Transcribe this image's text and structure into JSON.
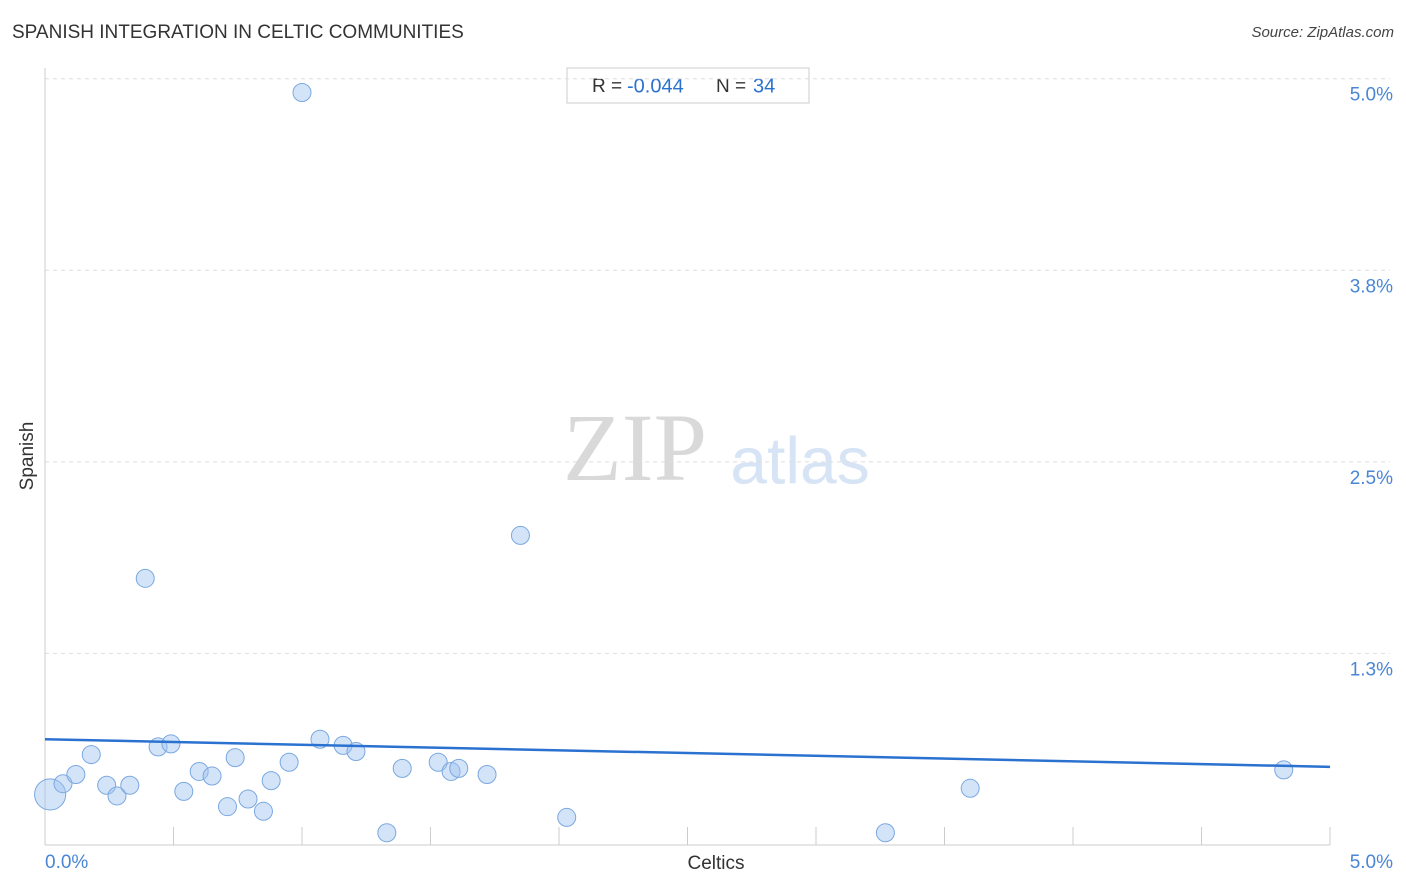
{
  "chart_data": {
    "type": "scatter",
    "title": "SPANISH INTEGRATION IN CELTIC COMMUNITIES",
    "source": "Source: ZipAtlas.com",
    "watermark": [
      "ZIP",
      "atlas"
    ],
    "x_label": "Celtics",
    "y_label": "Spanish",
    "stats": {
      "r_label": "R =",
      "r": -0.044,
      "n_label": "N =",
      "n": 34
    },
    "xlim": [
      0,
      5
    ],
    "ylim": [
      0,
      5.07
    ],
    "xticks": [
      {
        "value": 0,
        "label": "0.0%"
      },
      {
        "value": 5,
        "label": "5.0%"
      }
    ],
    "minor_xticks": [
      0.5,
      1,
      1.5,
      2,
      2.5,
      3,
      3.5,
      4,
      4.5,
      5
    ],
    "yticks": [
      {
        "value": 1.25,
        "label": "1.3%"
      },
      {
        "value": 2.5,
        "label": "2.5%"
      },
      {
        "value": 3.75,
        "label": "3.8%"
      },
      {
        "value": 5,
        "label": "5.0%"
      }
    ],
    "grid": true,
    "color": "#7aa8e0",
    "trend_color": "#2b72d0",
    "series": [
      {
        "name": "Spanish",
        "x": [
          0.02,
          0.07,
          0.12,
          0.18,
          0.24,
          0.28,
          0.33,
          0.39,
          0.44,
          0.49,
          0.54,
          0.6,
          0.65,
          0.71,
          0.74,
          0.79,
          0.85,
          0.88,
          0.95,
          1.0,
          1.07,
          1.16,
          1.21,
          1.33,
          1.39,
          1.53,
          1.58,
          1.61,
          1.72,
          1.85,
          2.03,
          3.27,
          3.6,
          4.82
        ],
        "values": [
          0.33,
          0.4,
          0.46,
          0.59,
          0.39,
          0.32,
          0.39,
          1.74,
          0.64,
          0.66,
          0.35,
          0.48,
          0.45,
          0.25,
          0.57,
          0.3,
          0.22,
          0.42,
          0.54,
          4.91,
          0.69,
          0.65,
          0.61,
          0.08,
          0.5,
          0.54,
          0.48,
          0.5,
          0.46,
          2.02,
          0.18,
          0.08,
          0.37,
          0.49
        ],
        "sizes": [
          3,
          1,
          1,
          1,
          1,
          1,
          1,
          1,
          1,
          1,
          1,
          1,
          1,
          1,
          1,
          1,
          1,
          1,
          1,
          1,
          1,
          1,
          1,
          1,
          1,
          1,
          1,
          1,
          1,
          1,
          1,
          1,
          1,
          1
        ]
      }
    ],
    "trend_line": {
      "x": [
        0,
        5
      ],
      "y": [
        0.69,
        0.51
      ]
    }
  }
}
